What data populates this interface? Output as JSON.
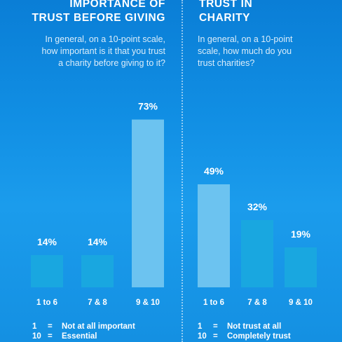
{
  "panels": [
    {
      "title_line1": "IMPORTANCE OF",
      "title_line2": "TRUST BEFORE GIVING",
      "question_lines": [
        "In general, on a 10-point scale,",
        "how important is it that you trust",
        "a charity before giving to it?"
      ],
      "legend": [
        {
          "key": "1",
          "eq": "=",
          "text": "Not at all important"
        },
        {
          "key": "10",
          "eq": "=",
          "text": "Essential"
        }
      ]
    },
    {
      "title_line1": "TRUST IN",
      "title_line2": "CHARITY",
      "question_lines": [
        "In general, on a 10-point",
        "scale, how much do you",
        "trust charities?"
      ],
      "legend": [
        {
          "key": "1",
          "eq": "=",
          "text": "Not trust at all"
        },
        {
          "key": "10",
          "eq": "=",
          "text": "Completely trust"
        }
      ]
    }
  ],
  "chart_data": [
    {
      "type": "bar",
      "title": "IMPORTANCE OF TRUST BEFORE GIVING",
      "categories": [
        "1 to 6",
        "7 & 8",
        "9 & 10"
      ],
      "values": [
        14,
        14,
        73
      ],
      "value_labels": [
        "14%",
        "14%",
        "73%"
      ],
      "ylim": [
        0,
        100
      ],
      "colors": [
        "#19a7e0",
        "#19a7e0",
        "#6cc3f0"
      ],
      "grid": false
    },
    {
      "type": "bar",
      "title": "TRUST IN CHARITY",
      "categories": [
        "1 to 6",
        "7 & 8",
        "9 & 10"
      ],
      "values": [
        49,
        32,
        19
      ],
      "value_labels": [
        "49%",
        "32%",
        "19%"
      ],
      "ylim": [
        0,
        100
      ],
      "colors": [
        "#6cc3f0",
        "#19a7e0",
        "#19a7e0"
      ],
      "grid": false
    }
  ]
}
